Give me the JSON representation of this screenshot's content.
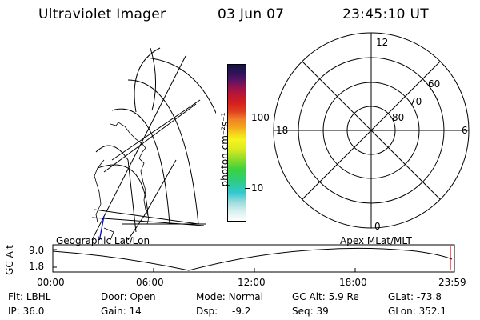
{
  "header": {
    "instrument": "Ultraviolet Imager",
    "date": "03 Jun 07",
    "time": "23:45:10 UT"
  },
  "colorbar": {
    "unit_label": "photon cm⁻²s⁻¹",
    "ticks": [
      "100",
      "10"
    ],
    "colors": [
      "#ffffff",
      "#d8f0f0",
      "#9adcdc",
      "#32c8d2",
      "#2ecc7a",
      "#3cd23c",
      "#96dc28",
      "#dcea20",
      "#f5f51e",
      "#f5d21e",
      "#f5a51e",
      "#f08228",
      "#e04020",
      "#d21e1e",
      "#b4143c",
      "#8c1450",
      "#5a1464",
      "#32145a",
      "#141440"
    ]
  },
  "polar_plot": {
    "clock_labels": {
      "top": "12",
      "left": "18",
      "right": "6",
      "bottom": "0"
    },
    "lat_labels": [
      "60",
      "70",
      "80"
    ]
  },
  "orbit_panel": {
    "left_title": "Geographic Lat/Lon",
    "right_title": "Apex MLat/MLT",
    "ylabel": "GC Alt",
    "y_ticks": [
      "9.0",
      "1.8"
    ],
    "x_ticks": [
      "00:00",
      "06:00",
      "12:00",
      "18:00",
      "23:59"
    ]
  },
  "status": {
    "filter_label": "Flt:",
    "filter_value": "LBHL",
    "ip_label": "IP:",
    "ip_value": "36.0",
    "door_label": "Door:",
    "door_value": "Open",
    "gain_label": "Gain:",
    "gain_value": "14",
    "mode_label": "Mode:",
    "mode_value": "Normal",
    "dsp_label": "Dsp:",
    "dsp_value": "-9.2",
    "gcalt_label": "GC Alt:",
    "gcalt_value": "5.9 Re",
    "seq_label": "Seq:",
    "seq_value": "39",
    "glat_label": "GLat:",
    "glat_value": "-73.8",
    "glon_label": "GLon:",
    "glon_value": "352.1"
  }
}
